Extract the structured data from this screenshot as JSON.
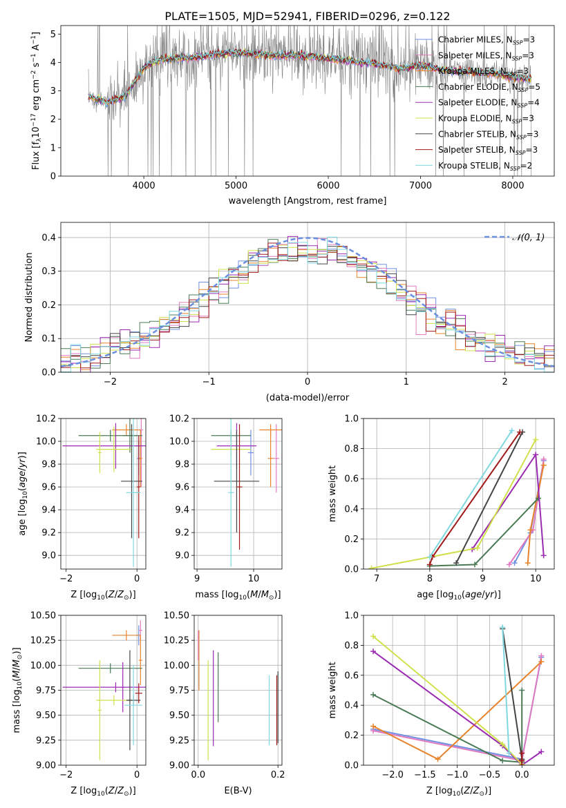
{
  "figure_title": "PLATE=1505, MJD=52941, FIBERID=0296, z=0.122",
  "colors": {
    "Chabrier MILES": "#6f8fe0",
    "Salpeter MILES": "#e07ac0",
    "Kroupa MILES": "#e8822a",
    "Chabrier ELODIE": "#4a7a55",
    "Salpeter ELODIE": "#9a2ab0",
    "Kroupa ELODIE": "#cfe04a",
    "Chabrier STELIB": "#444444",
    "Salpeter STELIB": "#a01818",
    "Kroupa STELIB": "#7fd8e0",
    "data": "#808080",
    "normal": "#6a8ee0"
  },
  "chart_data": [
    {
      "id": "spectrum",
      "type": "line",
      "xlabel": "wavelength [Angstrom, rest frame]",
      "ylabel": "Flux [f_λ 10^-17 erg cm^-2 s^-1 A^-1]",
      "xlim": [
        3100,
        8450
      ],
      "ylim": [
        0,
        5.3
      ],
      "xticks": [
        "4000",
        "5000",
        "6000",
        "7000",
        "8000"
      ],
      "yticks": [
        "0",
        "1",
        "2",
        "3",
        "4",
        "5"
      ],
      "legend": [
        {
          "name": "Chabrier MILES",
          "nssp": "3"
        },
        {
          "name": "Salpeter MILES",
          "nssp": "3"
        },
        {
          "name": "Kroupa MILES",
          "nssp": "3"
        },
        {
          "name": "Chabrier ELODIE",
          "nssp": "5"
        },
        {
          "name": "Salpeter ELODIE",
          "nssp": "4"
        },
        {
          "name": "Kroupa ELODIE",
          "nssp": "3"
        },
        {
          "name": "Chabrier STELIB",
          "nssp": "3"
        },
        {
          "name": "Salpeter STELIB",
          "nssp": "3"
        },
        {
          "name": "Kroupa STELIB",
          "nssp": "2"
        }
      ],
      "legend_placement": "top-right",
      "continuum": {
        "x": [
          3400,
          3600,
          3800,
          3900,
          4000,
          4100,
          4200,
          4400,
          4600,
          4800,
          5000,
          5200,
          5400,
          5600,
          5800,
          6000,
          6200,
          6400,
          6600,
          6800,
          7000,
          7200,
          7400,
          7600,
          7800,
          8000,
          8200
        ],
        "y": [
          2.8,
          2.6,
          2.8,
          3.3,
          3.8,
          4.0,
          4.1,
          4.15,
          4.2,
          4.3,
          4.35,
          4.3,
          4.25,
          4.25,
          4.2,
          4.15,
          4.05,
          4.0,
          3.9,
          3.8,
          3.9,
          3.75,
          3.7,
          3.65,
          3.6,
          3.5,
          3.4
        ]
      }
    },
    {
      "id": "residuals",
      "type": "line",
      "xlabel": "(data-model)/error",
      "ylabel": "Normed distribution",
      "xlim": [
        -2.5,
        2.5
      ],
      "ylim": [
        0,
        0.445
      ],
      "xticks": [
        "−2",
        "−1",
        "0",
        "1",
        "2"
      ],
      "yticks": [
        "0.0",
        "0.1",
        "0.2",
        "0.3",
        "0.4"
      ],
      "legend": "𝒩(0, 1)",
      "grid": true,
      "note": "histogram steps for 9 models around N(0,1)"
    },
    {
      "id": "age_vs_Z",
      "type": "scatter",
      "xlabel": "Z [log10(Z/Z⊙)]",
      "ylabel": "age [log10(age/yr)]",
      "xlim": [
        -2.15,
        0.25
      ],
      "ylim": [
        8.88,
        10.2
      ],
      "xticks": [
        "−2",
        "0"
      ],
      "yticks": [
        "9.0",
        "9.2",
        "9.4",
        "9.6",
        "9.8",
        "10.0",
        "10.2"
      ],
      "grid": true,
      "points": [
        {
          "model": "Chabrier MILES",
          "x": 0.05,
          "y": 9.85,
          "xerr": 0.05,
          "yerr": 0.15
        },
        {
          "model": "Salpeter MILES",
          "x": 0.12,
          "y": 10.1,
          "xerr": 0.05,
          "yerr": 0.5
        },
        {
          "model": "Kroupa MILES",
          "x": -0.3,
          "y": 10.1,
          "xerr": 0.4,
          "yerr": 0.05
        },
        {
          "model": "Kroupa MILES",
          "x": 0.1,
          "y": 9.85,
          "xerr": 0.05,
          "yerr": 0.25
        },
        {
          "model": "Chabrier ELODIE",
          "x": -0.2,
          "y": 10.05,
          "xerr": 0.2,
          "yerr": 0.15
        },
        {
          "model": "Chabrier ELODIE",
          "x": -0.75,
          "y": 10.05,
          "xerr": 0.9,
          "yerr": 0.05
        },
        {
          "model": "Salpeter ELODIE",
          "x": -0.6,
          "y": 9.96,
          "xerr": 1.5,
          "yerr": 0.2
        },
        {
          "model": "Kroupa ELODIE",
          "x": -0.65,
          "y": 9.93,
          "xerr": 0.5,
          "yerr": 0.2
        },
        {
          "model": "Kroupa ELODIE",
          "x": -1.05,
          "y": 9.9,
          "xerr": 0.05,
          "yerr": 0.18
        },
        {
          "model": "Chabrier STELIB",
          "x": -0.15,
          "y": 9.65,
          "xerr": 0.3,
          "yerr": 0.5
        },
        {
          "model": "Salpeter STELIB",
          "x": 0.05,
          "y": 9.6,
          "xerr": 0.05,
          "yerr": 0.45
        },
        {
          "model": "Kroupa STELIB",
          "x": -0.1,
          "y": 9.55,
          "xerr": 0.2,
          "yerr": 0.65
        }
      ]
    },
    {
      "id": "age_vs_mass",
      "type": "scatter",
      "xlabel": "mass [log10(M/M⊙)]",
      "ylabel": "",
      "xlim": [
        8.95,
        10.5
      ],
      "ylim": [
        8.88,
        10.2
      ],
      "xticks": [
        "9",
        "10"
      ],
      "yticks": [
        "9.0",
        "9.2",
        "9.4",
        "9.6",
        "9.8",
        "10.0",
        "10.2"
      ],
      "grid": true,
      "points": [
        {
          "model": "Chabrier MILES",
          "x": 9.95,
          "y": 9.9,
          "xerr": 0.05,
          "yerr": 0.2
        },
        {
          "model": "Salpeter MILES",
          "x": 10.4,
          "y": 9.85,
          "xerr": 0.05,
          "yerr": 0.3
        },
        {
          "model": "Kroupa MILES",
          "x": 10.3,
          "y": 10.1,
          "xerr": 0.2,
          "yerr": 0.05
        },
        {
          "model": "Kroupa MILES",
          "x": 10.3,
          "y": 9.85,
          "xerr": 0.05,
          "yerr": 0.25
        },
        {
          "model": "Chabrier ELODIE",
          "x": 9.6,
          "y": 10.05,
          "xerr": 0.35,
          "yerr": 0.05
        },
        {
          "model": "Salpeter ELODIE",
          "x": 9.7,
          "y": 9.96,
          "xerr": 0.35,
          "yerr": 0.2
        },
        {
          "model": "Kroupa ELODIE",
          "x": 9.6,
          "y": 9.93,
          "xerr": 0.35,
          "yerr": 0.05
        },
        {
          "model": "Chabrier STELIB",
          "x": 9.7,
          "y": 9.65,
          "xerr": 0.4,
          "yerr": 0.45
        },
        {
          "model": "Salpeter STELIB",
          "x": 9.75,
          "y": 9.6,
          "xerr": 0.05,
          "yerr": 0.55
        },
        {
          "model": "Kroupa STELIB",
          "x": 9.6,
          "y": 9.55,
          "xerr": 0.05,
          "yerr": 0.65
        }
      ]
    },
    {
      "id": "weight_vs_age",
      "type": "line",
      "xlabel": "age [log10(age/yr)]",
      "ylabel": "mass weight",
      "xlim": [
        6.75,
        10.35
      ],
      "ylim": [
        0,
        1.0
      ],
      "xticks": [
        "7",
        "8",
        "9",
        "10"
      ],
      "yticks": [
        "0.0",
        "0.2",
        "0.4",
        "0.6",
        "0.8",
        "1.0"
      ],
      "grid": true,
      "series": [
        {
          "model": "Chabrier MILES",
          "x": [
            9.6,
            9.9,
            10.15
          ],
          "y": [
            0.04,
            0.24,
            0.72
          ]
        },
        {
          "model": "Salpeter MILES",
          "x": [
            9.5,
            9.95,
            10.15
          ],
          "y": [
            0.03,
            0.26,
            0.73
          ]
        },
        {
          "model": "Kroupa MILES",
          "x": [
            9.85,
            9.9,
            10.15
          ],
          "y": [
            0.04,
            0.26,
            0.69
          ]
        },
        {
          "model": "Chabrier ELODIE",
          "x": [
            8.0,
            8.85,
            10.05
          ],
          "y": [
            0.02,
            0.03,
            0.47
          ]
        },
        {
          "model": "Salpeter ELODIE",
          "x": [
            8.8,
            10.0,
            10.15
          ],
          "y": [
            0.13,
            0.76,
            0.09
          ]
        },
        {
          "model": "Kroupa ELODIE",
          "x": [
            6.9,
            8.9,
            10.0
          ],
          "y": [
            0.005,
            0.14,
            0.86
          ]
        },
        {
          "model": "Chabrier STELIB",
          "x": [
            8.5,
            9.75
          ],
          "y": [
            0.04,
            0.91
          ]
        },
        {
          "model": "Salpeter STELIB",
          "x": [
            8.0,
            8.05,
            9.7
          ],
          "y": [
            0.03,
            0.08,
            0.91
          ]
        },
        {
          "model": "Kroupa STELIB",
          "x": [
            8.0,
            9.55
          ],
          "y": [
            0.08,
            0.92
          ]
        }
      ]
    },
    {
      "id": "mass_vs_Z",
      "type": "scatter",
      "xlabel": "Z [log10(Z/Z⊙)]",
      "ylabel": "mass [log10(M/M⊙)]",
      "xlim": [
        -2.15,
        0.25
      ],
      "ylim": [
        9.0,
        10.5
      ],
      "xticks": [
        "−2",
        "0"
      ],
      "yticks": [
        "9.00",
        "9.25",
        "9.50",
        "9.75",
        "10.00",
        "10.25",
        "10.50"
      ],
      "grid": true,
      "points": [
        {
          "model": "Chabrier MILES",
          "x": 0.05,
          "y": 10.3,
          "xerr": 0.05,
          "yerr": 0.1
        },
        {
          "model": "Salpeter MILES",
          "x": 0.1,
          "y": 10.35,
          "xerr": 0.05,
          "yerr": 0.1
        },
        {
          "model": "Kroupa MILES",
          "x": -0.3,
          "y": 10.3,
          "xerr": 0.4,
          "yerr": 0.05
        },
        {
          "model": "Kroupa MILES",
          "x": 0.1,
          "y": 10.05,
          "xerr": 0.05,
          "yerr": 0.25
        },
        {
          "model": "Chabrier ELODIE",
          "x": -0.75,
          "y": 9.97,
          "xerr": 0.9,
          "yerr": 0.05
        },
        {
          "model": "Salpeter ELODIE",
          "x": -0.6,
          "y": 9.78,
          "xerr": 1.5,
          "yerr": 0.05
        },
        {
          "model": "Salpeter ELODIE",
          "x": -0.4,
          "y": 9.78,
          "xerr": 0.05,
          "yerr": 0.25
        },
        {
          "model": "Kroupa ELODIE",
          "x": -0.65,
          "y": 9.65,
          "xerr": 0.5,
          "yerr": 0.05
        },
        {
          "model": "Kroupa ELODIE",
          "x": -1.05,
          "y": 9.55,
          "xerr": 0.05,
          "yerr": 0.5
        },
        {
          "model": "Chabrier STELIB",
          "x": -0.2,
          "y": 9.65,
          "xerr": 0.05,
          "yerr": 0.5
        },
        {
          "model": "Chabrier STELIB",
          "x": -0.1,
          "y": 9.65,
          "xerr": 0.2,
          "yerr": 0.05
        },
        {
          "model": "Salpeter STELIB",
          "x": 0.05,
          "y": 9.72,
          "xerr": 0.1,
          "yerr": 0.1
        },
        {
          "model": "Kroupa STELIB",
          "x": -0.1,
          "y": 9.6,
          "xerr": 0.25,
          "yerr": 0.4
        }
      ]
    },
    {
      "id": "mass_vs_EBV",
      "type": "scatter",
      "xlabel": "E(B-V)",
      "ylabel": "",
      "xlim": [
        -0.01,
        0.21
      ],
      "ylim": [
        9.0,
        10.5
      ],
      "xticks": [
        "0.0",
        "0.2"
      ],
      "yticks": [
        "9.00",
        "9.25",
        "9.50",
        "9.75",
        "10.00",
        "10.25",
        "10.50"
      ],
      "grid": true,
      "points": [
        {
          "model": "Kroupa MILES",
          "x": 0.002,
          "y": 10.05,
          "yerr": 0.3
        },
        {
          "model": "Salpeter MILES",
          "x": 0.0,
          "y": 10.2,
          "yerr": 0.15
        },
        {
          "model": "Kroupa ELODIE",
          "x": 0.025,
          "y": 9.55,
          "yerr": 0.5
        },
        {
          "model": "Salpeter ELODIE",
          "x": 0.038,
          "y": 9.67,
          "yerr": 0.48
        },
        {
          "model": "Chabrier ELODIE",
          "x": 0.05,
          "y": 9.78,
          "yerr": 0.35
        },
        {
          "model": "Kroupa STELIB",
          "x": 0.178,
          "y": 9.55,
          "yerr": 0.35
        },
        {
          "model": "Salpeter STELIB",
          "x": 0.197,
          "y": 9.55,
          "yerr": 0.35
        },
        {
          "model": "Chabrier STELIB",
          "x": 0.2,
          "y": 9.58,
          "yerr": 0.36
        }
      ]
    },
    {
      "id": "weight_vs_Z",
      "type": "line",
      "xlabel": "Z [log10(Z/Z⊙)]",
      "ylabel": "mass weight",
      "xlim": [
        -2.45,
        0.5
      ],
      "ylim": [
        0,
        1.0
      ],
      "xticks": [
        "−2.0",
        "−1.5",
        "−1.0",
        "−0.5",
        "0.0"
      ],
      "yticks": [
        "0.0",
        "0.2",
        "0.4",
        "0.6",
        "0.8",
        "1.0"
      ],
      "grid": true,
      "series": [
        {
          "model": "Chabrier MILES",
          "x": [
            -2.3,
            0.0,
            0.3
          ],
          "y": [
            0.24,
            0.04,
            0.72
          ]
        },
        {
          "model": "Salpeter MILES",
          "x": [
            -2.3,
            0.0,
            0.3
          ],
          "y": [
            0.23,
            0.03,
            0.73
          ]
        },
        {
          "model": "Kroupa MILES",
          "x": [
            -2.3,
            -1.3,
            0.3
          ],
          "y": [
            0.26,
            0.04,
            0.69
          ]
        },
        {
          "model": "Chabrier ELODIE",
          "x": [
            -2.3,
            -0.3,
            0.0,
            0.0
          ],
          "y": [
            0.47,
            0.03,
            0.02,
            0.5
          ]
        },
        {
          "model": "Salpeter ELODIE",
          "x": [
            -2.3,
            -0.3,
            0.0,
            0.3
          ],
          "y": [
            0.76,
            0.13,
            0.0,
            0.09
          ]
        },
        {
          "model": "Kroupa ELODIE",
          "x": [
            -2.3,
            -0.3,
            0.0
          ],
          "y": [
            0.86,
            0.14,
            0.005
          ]
        },
        {
          "model": "Chabrier STELIB",
          "x": [
            -0.3,
            0.0
          ],
          "y": [
            0.91,
            0.04
          ]
        },
        {
          "model": "Salpeter STELIB",
          "x": [
            0.0,
            0.0,
            0.0
          ],
          "y": [
            0.03,
            0.08,
            0.0
          ]
        },
        {
          "model": "Kroupa STELIB",
          "x": [
            -0.3,
            -0.2
          ],
          "y": [
            0.92,
            0.08
          ]
        }
      ]
    }
  ]
}
